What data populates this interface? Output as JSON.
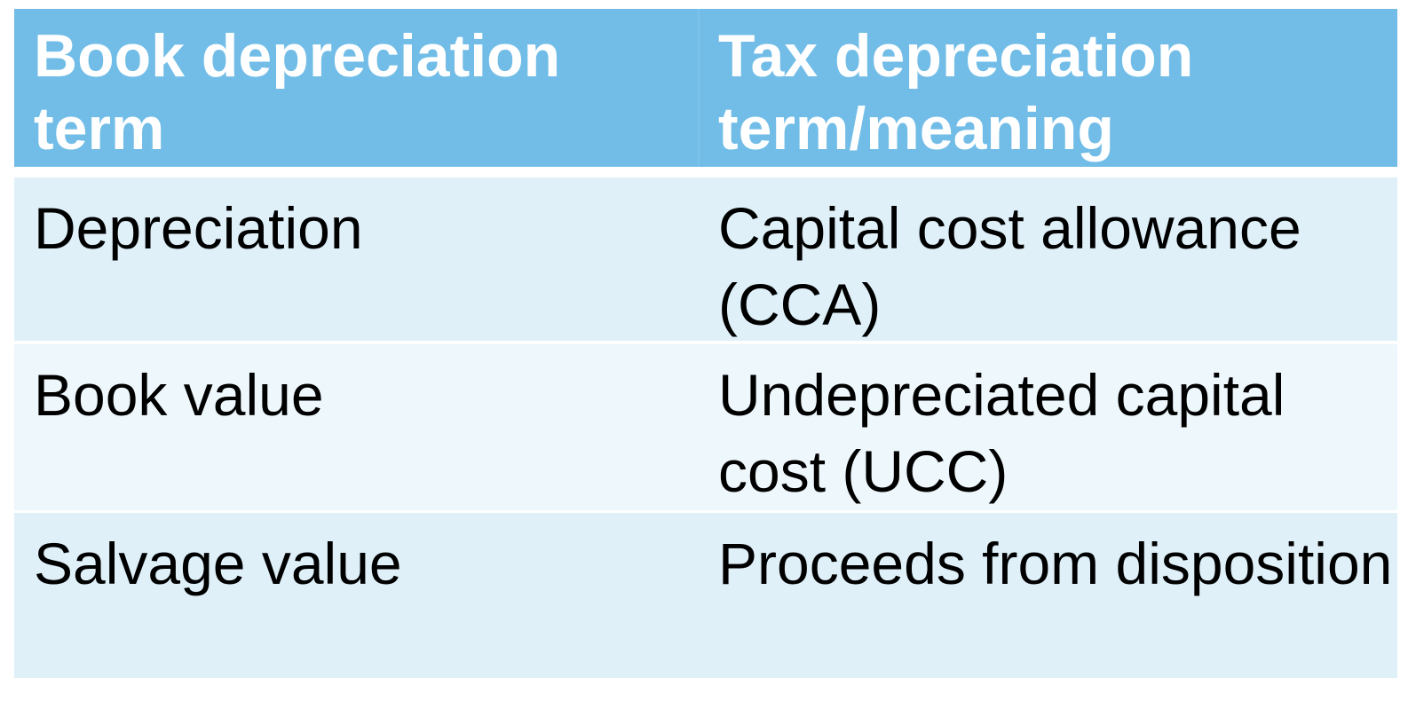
{
  "table": {
    "headers": [
      "Book depreciation term",
      "Tax depreciation term/meaning"
    ],
    "rows": [
      [
        "Depreciation",
        "Capital cost allowance (CCA)"
      ],
      [
        "Book value",
        "Undepreciated capital cost (UCC)"
      ],
      [
        "Salvage value",
        "Proceeds from disposition"
      ]
    ]
  },
  "colors": {
    "header_bg": "#72bde7",
    "row_odd_bg": "#dff0f9",
    "row_even_bg": "#eef7fc",
    "header_text": "#ffffff",
    "body_text": "#000000"
  }
}
